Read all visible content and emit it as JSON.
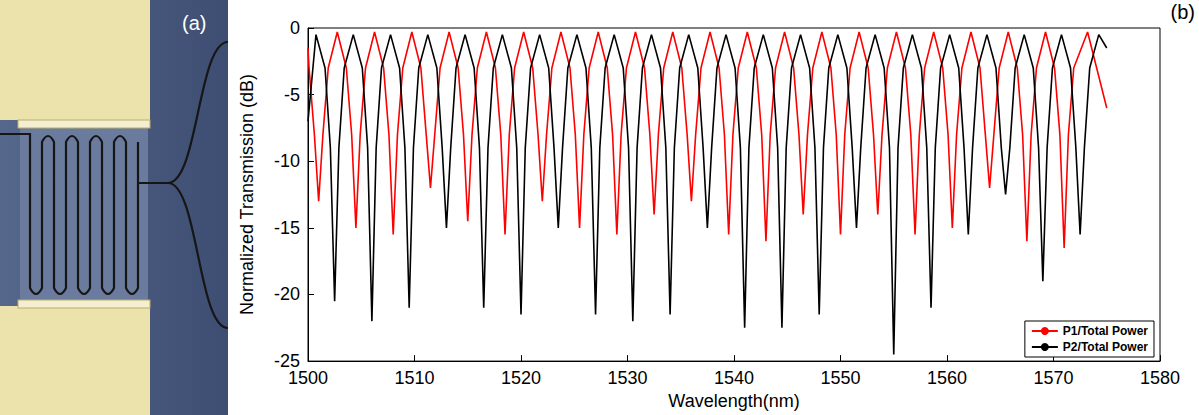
{
  "image_panel": {
    "label": "(a)"
  },
  "chart_data": {
    "type": "line",
    "annotations": [
      "(b)"
    ],
    "x_label": "Wavelength(nm)",
    "y_label": "Normalized Transmission (dB)",
    "xlim": [
      1500,
      1580
    ],
    "xticks": [
      1500,
      1510,
      1520,
      1530,
      1540,
      1550,
      1560,
      1570,
      1580
    ],
    "ylim": [
      -25,
      0
    ],
    "yticks": [
      -25,
      -20,
      -15,
      -10,
      -5,
      0
    ],
    "grid": false,
    "legend": "lower right",
    "series": [
      {
        "name": "P1/Total Power",
        "color": "#ff0000",
        "x": [
          1500,
          1500.1,
          1500.6,
          1501,
          1501.4,
          1501.9,
          1502.75,
          1503.6,
          1504.1,
          1504.5,
          1504.9,
          1505.4,
          1506.25,
          1507.1,
          1507.6,
          1508,
          1508.4,
          1508.9,
          1509.75,
          1510.6,
          1511.1,
          1511.5,
          1511.9,
          1512.4,
          1513.25,
          1514.1,
          1514.6,
          1515,
          1515.4,
          1515.9,
          1516.75,
          1517.6,
          1518.1,
          1518.5,
          1518.9,
          1519.4,
          1520.25,
          1521.1,
          1521.6,
          1522,
          1522.4,
          1522.9,
          1523.75,
          1524.6,
          1525.1,
          1525.5,
          1525.9,
          1526.4,
          1527.25,
          1528.1,
          1528.6,
          1529,
          1529.4,
          1529.9,
          1530.75,
          1531.6,
          1532.1,
          1532.5,
          1532.9,
          1533.4,
          1534.25,
          1535.1,
          1535.6,
          1536,
          1536.4,
          1536.9,
          1537.75,
          1538.6,
          1539.1,
          1539.5,
          1539.9,
          1540.4,
          1541.25,
          1542.1,
          1542.6,
          1543,
          1543.4,
          1543.9,
          1544.75,
          1545.6,
          1546.1,
          1546.5,
          1546.9,
          1547.4,
          1548.25,
          1549.1,
          1549.6,
          1550,
          1550.4,
          1550.9,
          1551.75,
          1552.6,
          1553.1,
          1553.5,
          1553.9,
          1554.4,
          1555.25,
          1556.1,
          1556.6,
          1557,
          1557.4,
          1557.9,
          1558.75,
          1559.6,
          1560.1,
          1560.5,
          1560.9,
          1561.4,
          1562.25,
          1563.1,
          1563.6,
          1564,
          1564.4,
          1564.9,
          1565.75,
          1566.6,
          1567.1,
          1567.5,
          1567.9,
          1568.4,
          1569.25,
          1570.1,
          1570.6,
          1571,
          1571.4,
          1571.9,
          1573.2,
          1575
        ],
        "values": [
          -1.5,
          -3,
          -8,
          -13,
          -8,
          -3,
          -0.3,
          -3,
          -8,
          -15,
          -8,
          -3,
          -0.3,
          -3,
          -8,
          -15.5,
          -8,
          -3,
          -0.3,
          -3,
          -8,
          -12,
          -8,
          -3,
          -0.3,
          -3,
          -8,
          -14.5,
          -8,
          -3,
          -0.3,
          -3,
          -8,
          -15.5,
          -8,
          -3,
          -0.3,
          -3,
          -8,
          -13,
          -8,
          -3,
          -0.3,
          -3,
          -8,
          -15,
          -8,
          -3,
          -0.3,
          -3,
          -8,
          -15.5,
          -8,
          -3,
          -0.3,
          -3,
          -8,
          -14,
          -8,
          -3,
          -0.3,
          -3,
          -8,
          -13,
          -8,
          -3,
          -0.3,
          -3,
          -8,
          -15.5,
          -8,
          -3,
          -0.3,
          -3,
          -8,
          -16,
          -8,
          -3,
          -0.3,
          -3,
          -8,
          -14,
          -8,
          -3,
          -0.3,
          -3,
          -8,
          -15.5,
          -8,
          -3,
          -0.3,
          -3,
          -8,
          -14,
          -8,
          -3,
          -0.3,
          -3,
          -8,
          -15.5,
          -8,
          -3,
          -0.3,
          -3,
          -8,
          -15,
          -8,
          -3,
          -0.3,
          -3,
          -8,
          -12,
          -8,
          -3,
          -0.3,
          -3,
          -8,
          -16,
          -8,
          -3,
          -0.3,
          -3,
          -8,
          -16.5,
          -8,
          -3,
          -0.3,
          -6
        ]
      },
      {
        "name": "P2/Total Power",
        "color": "#000000",
        "x": [
          1500,
          1500.75,
          1501.6,
          1502.1,
          1502.5,
          1502.9,
          1503.4,
          1504.25,
          1505.1,
          1505.6,
          1506,
          1506.4,
          1506.9,
          1507.75,
          1508.6,
          1509.1,
          1509.5,
          1509.9,
          1510.4,
          1511.25,
          1512.1,
          1512.6,
          1513,
          1513.4,
          1513.9,
          1514.75,
          1515.6,
          1516.1,
          1516.5,
          1516.9,
          1517.4,
          1518.25,
          1519.1,
          1519.6,
          1520,
          1520.4,
          1520.9,
          1521.75,
          1522.6,
          1523.1,
          1523.5,
          1523.9,
          1524.4,
          1525.25,
          1526.1,
          1526.6,
          1527,
          1527.4,
          1527.9,
          1528.75,
          1529.6,
          1530.1,
          1530.5,
          1530.9,
          1531.4,
          1532.25,
          1533.1,
          1533.6,
          1534,
          1534.4,
          1534.9,
          1535.75,
          1536.6,
          1537.1,
          1537.5,
          1537.9,
          1538.4,
          1539.25,
          1540.1,
          1540.6,
          1541,
          1541.4,
          1541.9,
          1542.75,
          1543.6,
          1544.1,
          1544.5,
          1544.9,
          1545.4,
          1546.25,
          1547.1,
          1547.6,
          1548,
          1548.4,
          1548.9,
          1549.75,
          1550.6,
          1551.1,
          1551.5,
          1551.9,
          1552.4,
          1553.25,
          1554.1,
          1554.6,
          1555,
          1555.4,
          1555.9,
          1556.75,
          1557.6,
          1558.1,
          1558.5,
          1558.9,
          1559.4,
          1560.25,
          1561.1,
          1561.6,
          1562,
          1562.4,
          1562.9,
          1563.75,
          1564.6,
          1565.1,
          1565.5,
          1565.9,
          1566.4,
          1567.25,
          1568.1,
          1568.6,
          1569,
          1569.4,
          1569.9,
          1570.75,
          1571.6,
          1572.1,
          1572.5,
          1572.9,
          1573.4,
          1574.25,
          1575
        ],
        "values": [
          -7,
          -0.5,
          -3,
          -9,
          -20.5,
          -9,
          -3,
          -0.5,
          -3,
          -9,
          -22,
          -9,
          -3,
          -0.5,
          -3,
          -9,
          -21,
          -9,
          -3,
          -0.5,
          -3,
          -9,
          -15,
          -9,
          -3,
          -0.5,
          -3,
          -9,
          -21,
          -9,
          -3,
          -0.5,
          -3,
          -9,
          -21.5,
          -9,
          -3,
          -0.5,
          -3,
          -9,
          -15,
          -9,
          -3,
          -0.5,
          -3,
          -9,
          -21.5,
          -9,
          -3,
          -0.5,
          -3,
          -9,
          -22,
          -9,
          -3,
          -0.5,
          -3,
          -9,
          -21.5,
          -9,
          -3,
          -0.5,
          -3,
          -9,
          -15,
          -9,
          -3,
          -0.5,
          -3,
          -9,
          -22.5,
          -9,
          -3,
          -0.5,
          -3,
          -9,
          -22.5,
          -9,
          -3,
          -0.5,
          -3,
          -9,
          -21.5,
          -9,
          -3,
          -0.5,
          -3,
          -9,
          -15,
          -9,
          -3,
          -0.5,
          -3,
          -9,
          -24.5,
          -9,
          -3,
          -0.5,
          -3,
          -9,
          -21,
          -9,
          -3,
          -0.5,
          -3,
          -9,
          -15.5,
          -9,
          -3,
          -0.5,
          -3,
          -9,
          -12.5,
          -9,
          -3,
          -0.5,
          -3,
          -9,
          -19,
          -9,
          -3,
          -0.5,
          -3,
          -9,
          -15.5,
          -9,
          -3,
          -0.5,
          -1.5
        ]
      }
    ]
  }
}
